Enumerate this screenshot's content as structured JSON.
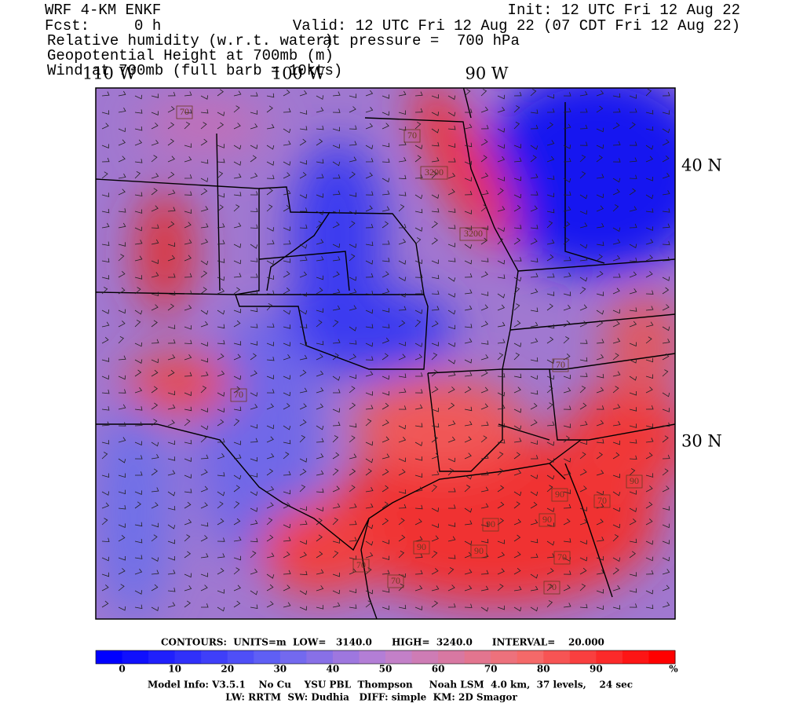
{
  "header": {
    "model": "WRF 4-KM ENKF",
    "forecast": "Fcst:     0 h",
    "init": "Init: 12 UTC Fri 12 Aug 22",
    "valid": "Valid: 12 UTC Fri 12 Aug 22 (07 CDT Fri 12 Aug 22)",
    "fields": [
      "Relative humidity (w.r.t. water)",
      "Geopotential Height at 700mb (m)",
      "Wind at 700mb (full barb = 10kts)"
    ],
    "pressure": "at pressure =  700 hPa"
  },
  "map": {
    "longitudes": [
      "110 W",
      "100 W",
      "90 W"
    ],
    "latitudes": [
      "40 N",
      "30 N"
    ],
    "labels": [
      "70",
      "70",
      "3200",
      "3200",
      "70",
      "70",
      "90",
      "70",
      "90",
      "90",
      "90",
      "90",
      "90",
      "70",
      "70",
      "70",
      "70"
    ]
  },
  "footer": {
    "contours": "CONTOURS:  UNITS=m  LOW=   3140.0      HIGH=  3240.0      INTERVAL=    20.000",
    "colorbar": {
      "ticks": [
        0,
        10,
        20,
        30,
        40,
        50,
        60,
        70,
        80,
        90
      ],
      "unit": "%"
    },
    "model_info": "Model Info: V3.5.1    No Cu    YSU PBL  Thompson     Noah LSM  4.0 km,  37 levels,    24 sec",
    "physics": "LW: RRTM  SW: Dudhia   DIFF: simple  KM: 2D Smagor"
  }
}
